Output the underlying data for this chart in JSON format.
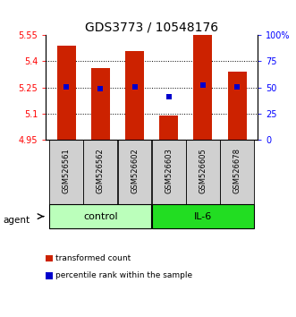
{
  "title": "GDS3773 / 10548176",
  "samples": [
    "GSM526561",
    "GSM526562",
    "GSM526602",
    "GSM526603",
    "GSM526605",
    "GSM526678"
  ],
  "bar_values": [
    5.49,
    5.36,
    5.46,
    5.09,
    5.55,
    5.34
  ],
  "bar_base": 4.95,
  "percentile_values": [
    5.255,
    5.245,
    5.255,
    5.195,
    5.265,
    5.252
  ],
  "ylim_left": [
    4.95,
    5.55
  ],
  "yticks_left": [
    4.95,
    5.1,
    5.25,
    5.4,
    5.55
  ],
  "yticks_right": [
    0,
    25,
    50,
    75,
    100
  ],
  "ytick_labels_right": [
    "0",
    "25",
    "50",
    "75",
    "100%"
  ],
  "groups": [
    {
      "label": "control",
      "indices": [
        0,
        1,
        2
      ],
      "color": "#bbffbb"
    },
    {
      "label": "IL-6",
      "indices": [
        3,
        4,
        5
      ],
      "color": "#22dd22"
    }
  ],
  "bar_color": "#cc2200",
  "percentile_color": "#0000cc",
  "bar_width": 0.55,
  "grid_yticks": [
    5.1,
    5.25,
    5.4
  ],
  "agent_label": "agent",
  "legend_bar_label": "transformed count",
  "legend_pct_label": "percentile rank within the sample",
  "background_color": "#ffffff",
  "sample_box_color": "#d0d0d0",
  "title_fontsize": 10,
  "tick_fontsize": 7,
  "sample_fontsize": 6,
  "group_fontsize": 8,
  "legend_fontsize": 6.5
}
